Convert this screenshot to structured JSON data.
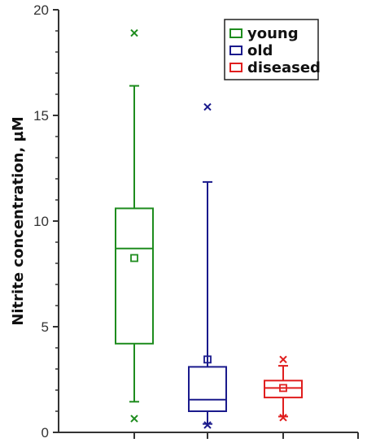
{
  "chart_data": {
    "type": "box",
    "ylabel": "Nitrite concentration, µM",
    "ylim": [
      0,
      20
    ],
    "yticks": [
      0,
      5,
      10,
      15,
      20
    ],
    "grid": false,
    "legend_position": "top-right",
    "series": [
      {
        "name": "young",
        "color": "#1e8c1e",
        "whisker_low": 1.45,
        "q1": 4.2,
        "median": 8.7,
        "q3": 10.6,
        "whisker_high": 16.4,
        "mean": 8.25,
        "outliers_low": [
          0.65
        ],
        "outliers_high": [
          18.9
        ]
      },
      {
        "name": "old",
        "color": "#1a1a8c",
        "whisker_low": 0.4,
        "q1": 1.0,
        "median": 1.55,
        "q3": 3.1,
        "whisker_high": 11.85,
        "mean": 3.45,
        "outliers_low": [
          0.35
        ],
        "outliers_high": [
          15.4
        ]
      },
      {
        "name": "diseased",
        "color": "#e01e1e",
        "whisker_low": 0.75,
        "q1": 1.65,
        "median": 2.1,
        "q3": 2.45,
        "whisker_high": 3.15,
        "mean": 2.1,
        "outliers_low": [
          0.7
        ],
        "outliers_high": [
          3.45
        ]
      }
    ]
  }
}
